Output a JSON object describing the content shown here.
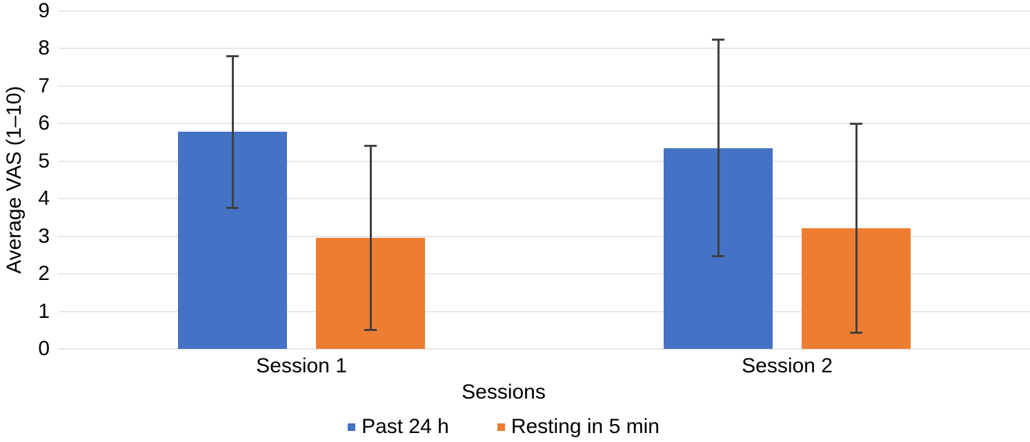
{
  "chart_data": {
    "type": "bar",
    "title": "",
    "xlabel": "Sessions",
    "ylabel": "Average VAS (1–10)",
    "categories": [
      "Session 1",
      "Session 2"
    ],
    "series": [
      {
        "name": "Past 24 h",
        "color": "#4472C4",
        "values": [
          5.78,
          5.35
        ],
        "error_low": [
          3.73,
          2.45
        ],
        "error_high": [
          7.82,
          8.26
        ]
      },
      {
        "name": "Resting in 5 min",
        "color": "#ED7D31",
        "values": [
          2.95,
          3.21
        ],
        "error_low": [
          0.47,
          0.4
        ],
        "error_high": [
          5.43,
          6.02
        ]
      }
    ],
    "ylim": [
      0,
      9
    ],
    "yticks": [
      0,
      1,
      2,
      3,
      4,
      5,
      6,
      7,
      8,
      9
    ],
    "grid": true,
    "legend_position": "bottom",
    "colors": {
      "gridline": "#E8E8E8",
      "axis_line": "#E4E4E4",
      "error_bar": "#404040",
      "text": "#000000",
      "background": "#FFFFFF"
    }
  }
}
